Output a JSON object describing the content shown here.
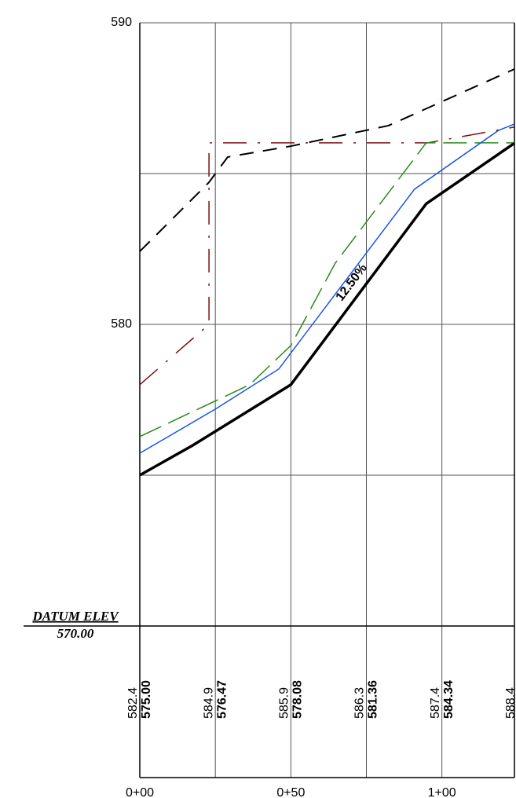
{
  "chart_data": {
    "type": "line",
    "ylim": [
      570,
      590
    ],
    "yticks": [
      580,
      590
    ],
    "minor_yticks": [
      575,
      585
    ],
    "xlim": [
      0,
      124
    ],
    "xticks": [
      {
        "value": 0,
        "label": "0+00"
      },
      {
        "value": 50,
        "label": "0+50"
      },
      {
        "value": 100,
        "label": "1+00"
      }
    ],
    "minor_xticks": [
      25,
      75
    ],
    "grid": true,
    "series": [
      {
        "color": "#000000",
        "width": 2,
        "dash": "18 12",
        "x": [
          0,
          22.9,
          29.1,
          50,
          82.3,
          123.9
        ],
        "values": [
          582.42,
          584.71,
          585.55,
          585.91,
          586.59,
          588.46
        ]
      },
      {
        "color": "#7a1010",
        "width": 1.5,
        "dash": "30 14 3 14",
        "x": [
          0,
          22.9,
          22.9,
          95.3,
          123.9
        ],
        "values": [
          578.0,
          580.0,
          586.02,
          586.02,
          586.54
        ]
      },
      {
        "color": "#2a8a1a",
        "width": 1.5,
        "dash": "30 10",
        "x": [
          0,
          36.4,
          50,
          64.7,
          94.8,
          123.9
        ],
        "values": [
          576.28,
          578.0,
          579.3,
          582.03,
          586.02,
          586.02
        ]
      },
      {
        "color": "#1a55e0",
        "width": 1.5,
        "dash": "",
        "x": [
          0,
          25,
          46,
          90.9,
          118.7,
          123.9
        ],
        "values": [
          575.73,
          577.19,
          578.52,
          584.48,
          586.43,
          586.64
        ]
      },
      {
        "color": "#000000",
        "width": 3.5,
        "dash": "",
        "x": [
          0,
          17.7,
          50,
          94.8,
          123.9
        ],
        "values": [
          575.0,
          576.0,
          578.0,
          584.0,
          586.0
        ]
      }
    ],
    "annotation": "12.50%",
    "datum_label": "DATUM ELEV",
    "datum_value": "570.00",
    "profile_table": {
      "stations": [
        0,
        25,
        50,
        75,
        100,
        125
      ],
      "rows": [
        [
          "582.4",
          "584.9",
          "585.9",
          "586.3",
          "587.4",
          "588.4"
        ],
        [
          "575.00",
          "576.47",
          "578.08",
          "581.36",
          "584.34",
          null
        ]
      ]
    }
  }
}
